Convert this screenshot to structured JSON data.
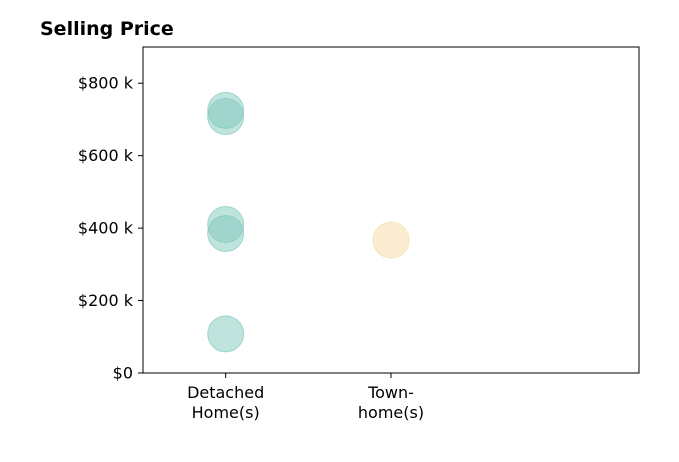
{
  "chart_data": {
    "type": "scatter",
    "title": "Selling Price",
    "xlabel": "",
    "ylabel": "",
    "categories": [
      {
        "lines": [
          "Detached",
          "Home(s)"
        ]
      },
      {
        "lines": [
          "Town-",
          "home(s)"
        ]
      }
    ],
    "xlim": [
      -0.5,
      2.5
    ],
    "ylim": [
      0,
      900000
    ],
    "yticks": [
      {
        "value": 0,
        "label": "$0"
      },
      {
        "value": 200000,
        "label": "$200 k"
      },
      {
        "value": 400000,
        "label": "$400 k"
      },
      {
        "value": 600000,
        "label": "$600 k"
      },
      {
        "value": 800000,
        "label": "$800 k"
      }
    ],
    "grid": false,
    "legend": "none",
    "series": [
      {
        "color": "#7fc8bc",
        "opacity": 0.5,
        "points": [
          {
            "x": 0,
            "y": 725000
          },
          {
            "x": 0,
            "y": 708000
          },
          {
            "x": 0,
            "y": 410000
          },
          {
            "x": 0,
            "y": 385000
          },
          {
            "x": 0,
            "y": 108000
          }
        ]
      },
      {
        "color": "#f5dfb0",
        "opacity": 0.6,
        "points": [
          {
            "x": 1,
            "y": 367000
          }
        ]
      }
    ]
  }
}
